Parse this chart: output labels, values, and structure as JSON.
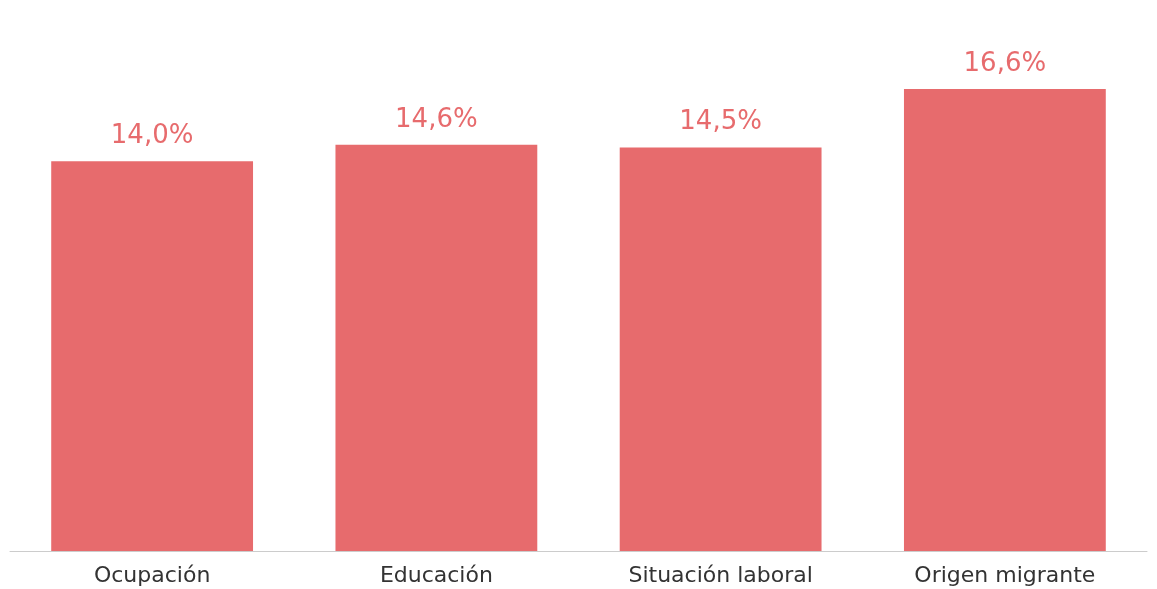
{
  "chart_data": {
    "type": "bar",
    "categories": [
      "Ocupación",
      "Educación",
      "Situación laboral",
      "Origen migrante"
    ],
    "values": [
      14.0,
      14.6,
      14.5,
      16.6
    ],
    "color": "#e76b6d",
    "value_labels": [
      "14,0%",
      "14,6%",
      "14,5%",
      "16,6%"
    ],
    "tick_labels": "x"
  }
}
